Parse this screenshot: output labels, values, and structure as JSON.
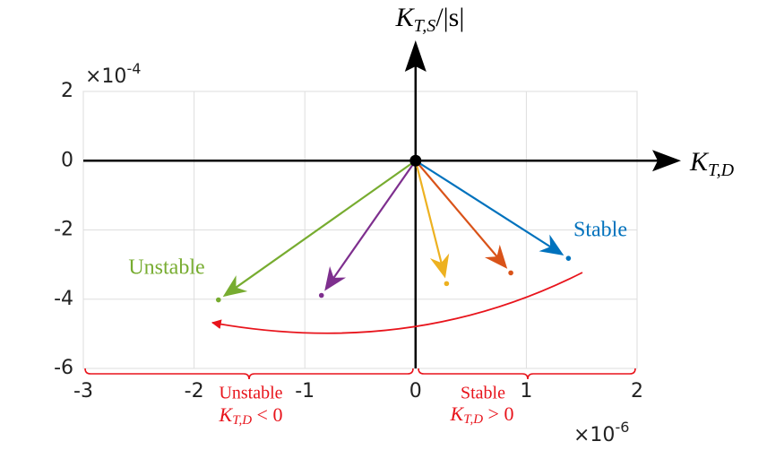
{
  "chart_data": {
    "type": "quiver",
    "xlabel": {
      "main": "K",
      "sub": "T,D"
    },
    "ylabel": {
      "main": "K",
      "sub": "T,S",
      "rest": "/|s|"
    },
    "x_multiplier": {
      "base": "×10",
      "exponent": "-6"
    },
    "y_multiplier": {
      "base": "×10",
      "exponent": "-4"
    },
    "xlim": [
      -3,
      2
    ],
    "ylim": [
      -6,
      2
    ],
    "xticks": [
      -3,
      -2,
      -1,
      0,
      1,
      2
    ],
    "yticks": [
      -6,
      -4,
      -2,
      0,
      2
    ],
    "grid": true,
    "series": [
      {
        "color": "#77ac30",
        "x": -1.78,
        "y": -4.02
      },
      {
        "color": "#7e2f8e",
        "x": -0.85,
        "y": -3.89
      },
      {
        "color": "#edb120",
        "x": 0.28,
        "y": -3.55
      },
      {
        "color": "#d95319",
        "x": 0.86,
        "y": -3.24
      },
      {
        "color": "#0072bd",
        "x": 1.38,
        "y": -2.82
      }
    ],
    "annotations": [
      {
        "text": "Unstable",
        "color": "#77ac30"
      },
      {
        "text": "Stable",
        "color": "#0072bd"
      }
    ],
    "regions": [
      {
        "text": "Unstable",
        "condition": {
          "main": "K",
          "sub": "T,D",
          "rest": " < 0"
        },
        "color": "#e8141c"
      },
      {
        "text": "Stable",
        "condition": {
          "main": "K",
          "sub": "T,D",
          "rest": " > 0"
        },
        "color": "#e8141c"
      }
    ]
  }
}
